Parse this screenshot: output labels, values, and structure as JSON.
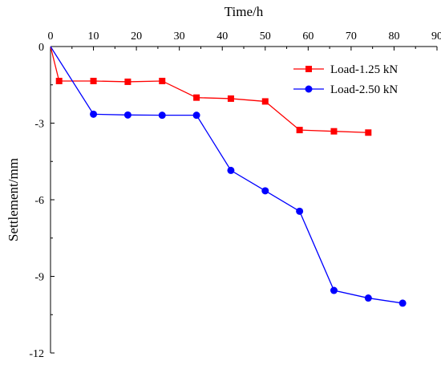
{
  "chart_data": {
    "type": "line",
    "xlabel": "Time/h",
    "ylabel": "Settlement/mm",
    "xlim": [
      0,
      90
    ],
    "ylim": [
      -12,
      0
    ],
    "x_ticks": [
      "0",
      "10",
      "20",
      "30",
      "40",
      "50",
      "60",
      "70",
      "80",
      "90"
    ],
    "y_ticks": [
      "0",
      "-3",
      "-6",
      "-9",
      "-12"
    ],
    "x_axis_position": "top",
    "grid": false,
    "legend_position": "top-right",
    "series": [
      {
        "name": "Load-1.25 kN",
        "color": "#ff0000",
        "marker": "square",
        "x": [
          0,
          2,
          10,
          18,
          26,
          34,
          42,
          50,
          58,
          66,
          74
        ],
        "y": [
          0,
          -1.35,
          -1.35,
          -1.38,
          -1.35,
          -2.0,
          -2.04,
          -2.15,
          -3.27,
          -3.32,
          -3.37
        ]
      },
      {
        "name": "Load-2.50 kN",
        "color": "#0000ff",
        "marker": "circle",
        "x": [
          0,
          10,
          18,
          26,
          34,
          42,
          50,
          58,
          66,
          74,
          82
        ],
        "y": [
          0,
          -2.65,
          -2.68,
          -2.69,
          -2.69,
          -4.85,
          -5.65,
          -6.45,
          -9.55,
          -9.85,
          -10.05
        ]
      }
    ]
  }
}
